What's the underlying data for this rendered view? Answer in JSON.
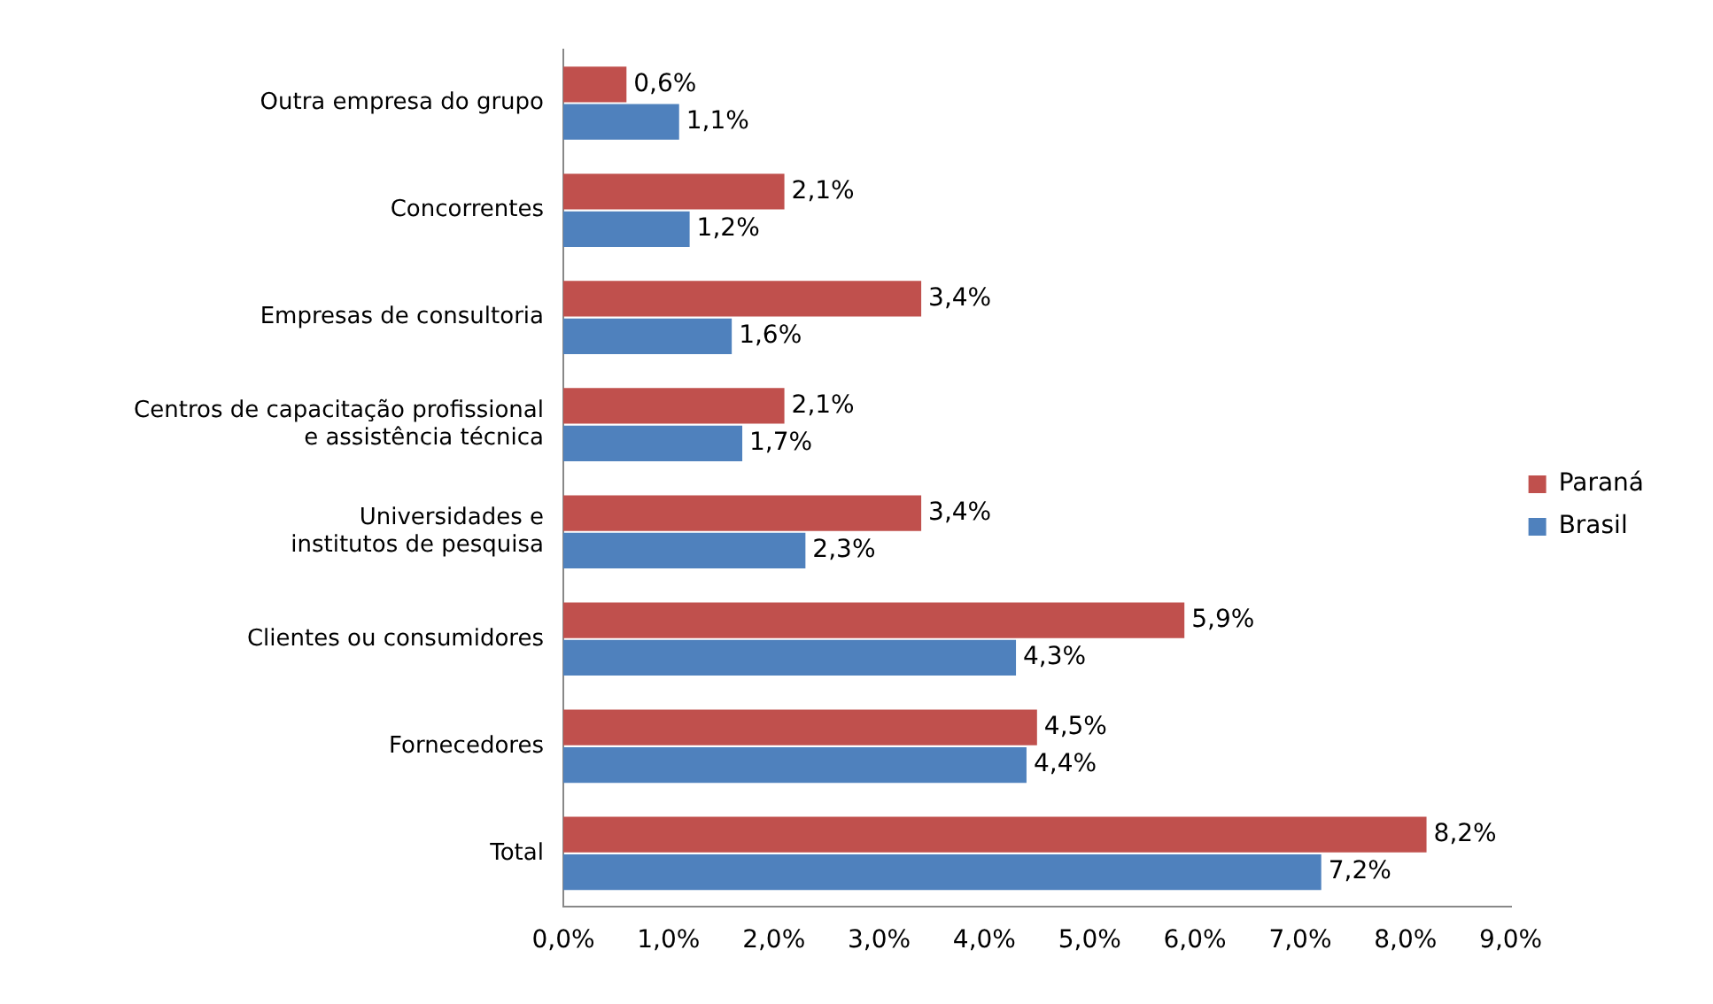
{
  "chart_data": {
    "type": "bar",
    "orientation": "horizontal",
    "categories": [
      "Outra empresa do grupo",
      "Concorrentes",
      "Empresas de consultoria",
      "Centros de capacitação profissional\ne assistência técnica",
      "Universidades e\ninstitutos de pesquisa",
      "Clientes ou consumidores",
      "Fornecedores",
      "Total"
    ],
    "series": [
      {
        "name": "Paraná",
        "color": "#c0504d",
        "values": [
          0.6,
          2.1,
          3.4,
          2.1,
          3.4,
          5.9,
          4.5,
          8.2
        ],
        "value_labels": [
          "0,6%",
          "2,1%",
          "3,4%",
          "2,1%",
          "3,4%",
          "5,9%",
          "4,5%",
          "8,2%"
        ]
      },
      {
        "name": "Brasil",
        "color": "#4f81bd",
        "values": [
          1.1,
          1.2,
          1.6,
          1.7,
          2.3,
          4.3,
          4.4,
          7.2
        ],
        "value_labels": [
          "1,1%",
          "1,2%",
          "1,6%",
          "1,7%",
          "2,3%",
          "4,3%",
          "4,4%",
          "7,2%"
        ]
      }
    ],
    "xlim": [
      0,
      9
    ],
    "xticks": [
      {
        "value": 0,
        "label": "0,0%"
      },
      {
        "value": 1,
        "label": "1,0%"
      },
      {
        "value": 2,
        "label": "2,0%"
      },
      {
        "value": 3,
        "label": "3,0%"
      },
      {
        "value": 4,
        "label": "4,0%"
      },
      {
        "value": 5,
        "label": "5,0%"
      },
      {
        "value": 6,
        "label": "6,0%"
      },
      {
        "value": 7,
        "label": "7,0%"
      },
      {
        "value": 8,
        "label": "8,0%"
      },
      {
        "value": 9,
        "label": "9,0%"
      }
    ],
    "grid": false,
    "legend": "right"
  }
}
